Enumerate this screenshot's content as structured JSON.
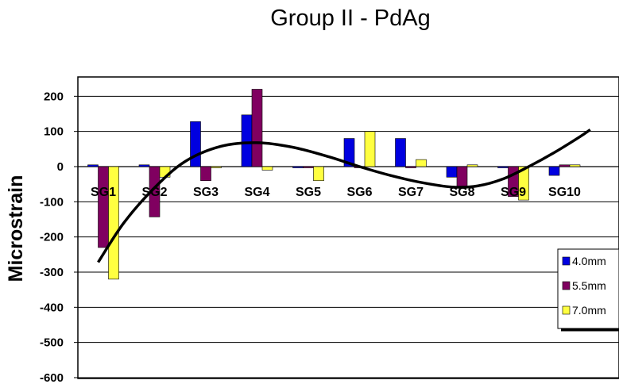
{
  "chart_data": {
    "type": "bar",
    "title": "Group  II - PdAg",
    "ylabel": "Microstrain",
    "xlabel": "",
    "categories": [
      "SG1",
      "SG2",
      "SG3",
      "SG4",
      "SG5",
      "SG6",
      "SG7",
      "SG8",
      "SG9",
      "SG10"
    ],
    "series": [
      {
        "name": "4.0mm",
        "color": "#0000e0",
        "values": [
          5,
          5,
          128,
          147,
          0,
          80,
          80,
          -30,
          0,
          -25
        ]
      },
      {
        "name": "5.5mm",
        "color": "#800060",
        "values": [
          -230,
          -143,
          -40,
          220,
          0,
          0,
          0,
          -60,
          -85,
          5
        ]
      },
      {
        "name": "7.0mm",
        "color": "#ffff40",
        "values": [
          -320,
          -30,
          0,
          -10,
          -40,
          100,
          20,
          5,
          -95,
          5
        ]
      }
    ],
    "trendline": {
      "type": "polynomial",
      "color": "#000000",
      "points": [
        [
          0.9,
          -272
        ],
        [
          1.4,
          -160
        ],
        [
          2,
          -60
        ],
        [
          2.6,
          15
        ],
        [
          3.3,
          58
        ],
        [
          4,
          68
        ],
        [
          4.7,
          55
        ],
        [
          5.4,
          28
        ],
        [
          6,
          0
        ],
        [
          6.6,
          -25
        ],
        [
          7.2,
          -45
        ],
        [
          7.8,
          -58
        ],
        [
          8.3,
          -55
        ],
        [
          8.8,
          -35
        ],
        [
          9.3,
          0
        ],
        [
          9.8,
          40
        ],
        [
          10.3,
          85
        ],
        [
          10.5,
          105
        ]
      ]
    },
    "ylim": [
      -600,
      250
    ],
    "yticks": [
      200,
      100,
      0,
      -100,
      -200,
      -300,
      -400,
      -500,
      -600
    ],
    "grid": true,
    "legend_position": "right"
  }
}
